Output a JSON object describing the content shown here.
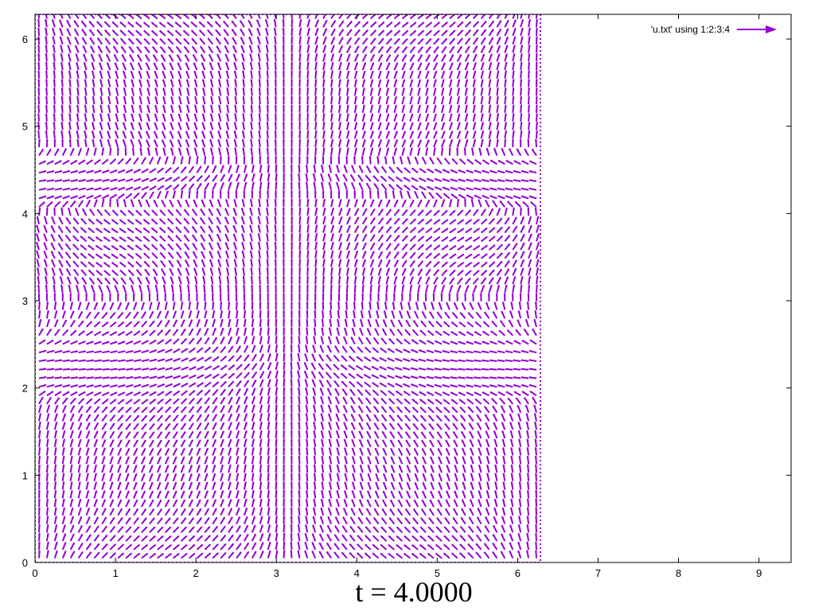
{
  "caption": "t = 4.0000",
  "chart_data": {
    "type": "vector-field",
    "title": "",
    "xlabel": "",
    "ylabel": "",
    "xlim": [
      0,
      9.4
    ],
    "ylim": [
      0,
      6.283
    ],
    "x_ticks": [
      0,
      1,
      2,
      3,
      4,
      5,
      6,
      7,
      8,
      9
    ],
    "y_ticks": [
      0,
      1,
      2,
      3,
      4,
      5,
      6
    ],
    "grid": false,
    "legend": {
      "position": "top-right",
      "entries": [
        "'u.txt' using 1:2:3:4"
      ]
    },
    "series": [
      {
        "name": "'u.txt' using 1:2:3:4",
        "color": "#9400d3",
        "style": "vectors",
        "domain": {
          "x": [
            0,
            6.283
          ],
          "y": [
            0,
            6.283
          ]
        },
        "grid_points": {
          "nx": 64,
          "ny": 64
        },
        "features": {
          "vortex_centers": [
            [
              1.65,
              3.0
            ],
            [
              4.65,
              3.0
            ]
          ],
          "vertical_shear_line_x": 3.14,
          "stagnation_points": [
            [
              3.14,
              4.35
            ],
            [
              3.14,
              2.2
            ]
          ]
        }
      }
    ]
  },
  "colors": {
    "series": "#9400d3",
    "axis": "#000000",
    "background": "#ffffff"
  }
}
